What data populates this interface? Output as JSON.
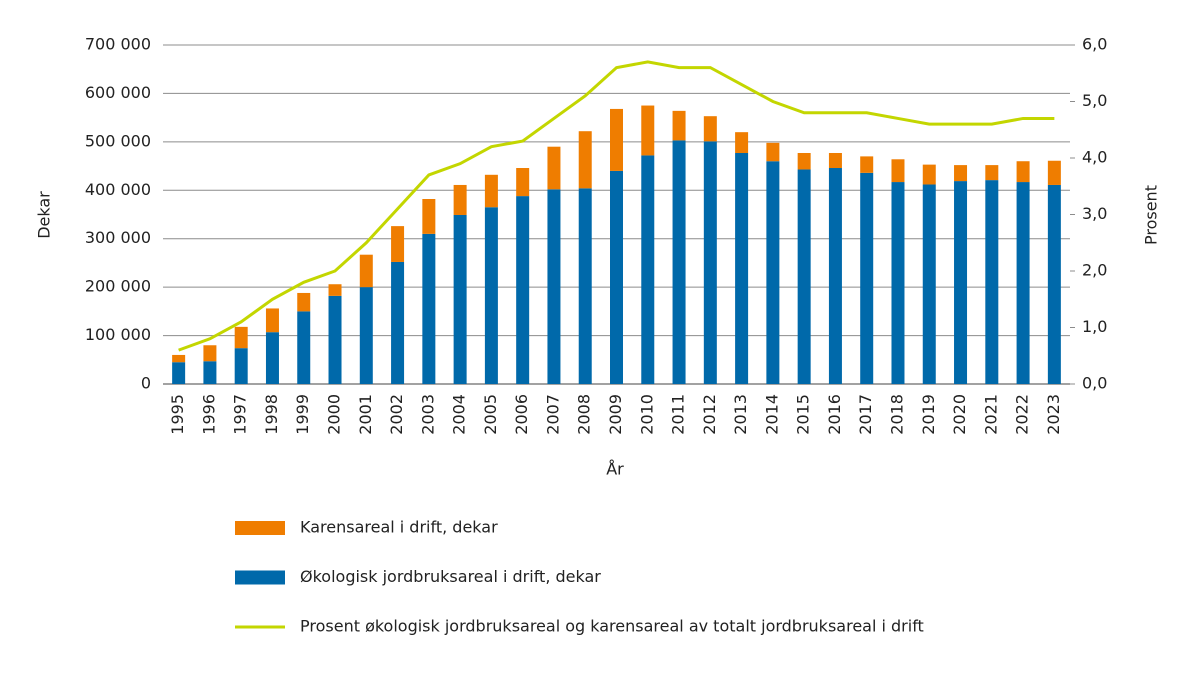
{
  "chart_data": {
    "type": "bar+line",
    "x_label": "År",
    "y_label": "Dekar",
    "y2_label": "Prosent",
    "categories": [
      "1995",
      "1996",
      "1997",
      "1998",
      "1999",
      "2000",
      "2001",
      "2002",
      "2003",
      "2004",
      "2005",
      "2006",
      "2007",
      "2008",
      "2009",
      "2010",
      "2011",
      "2012",
      "2013",
      "2014",
      "2015",
      "2016",
      "2017",
      "2018",
      "2019",
      "2020",
      "2021",
      "2022",
      "2023"
    ],
    "series": [
      {
        "name": "Karensareal i drift, dekar",
        "type": "bar",
        "color": "#ef7d00",
        "values": [
          15000,
          33000,
          44000,
          49000,
          38000,
          24000,
          67000,
          74000,
          72000,
          62000,
          67000,
          58000,
          88000,
          118000,
          128000,
          103000,
          61000,
          52000,
          43000,
          38000,
          34000,
          31000,
          34000,
          47000,
          41000,
          33000,
          31000,
          43000,
          50000
        ]
      },
      {
        "name": "Økologisk jordbruksareal i drift, dekar",
        "type": "bar",
        "color": "#0069aa",
        "values": [
          45000,
          47000,
          74000,
          107000,
          150000,
          182000,
          200000,
          252000,
          310000,
          349000,
          365000,
          388000,
          402000,
          404000,
          440000,
          472000,
          503000,
          501000,
          477000,
          460000,
          443000,
          446000,
          436000,
          417000,
          412000,
          419000,
          421000,
          417000,
          411000
        ]
      },
      {
        "name": "Prosent økologisk jordbruksareal og karensareal av totalt jordbruksareal i drift",
        "type": "line",
        "axis": "y2",
        "color": "#c3d600",
        "values": [
          0.6,
          0.8,
          1.1,
          1.5,
          1.8,
          2.0,
          2.5,
          3.1,
          3.7,
          3.9,
          4.2,
          4.3,
          4.7,
          5.1,
          5.6,
          5.7,
          5.6,
          5.6,
          5.3,
          5.0,
          4.8,
          4.8,
          4.8,
          4.7,
          4.6,
          4.6,
          4.6,
          4.7,
          4.7
        ]
      }
    ],
    "stacked": true,
    "ylim": [
      0,
      700000
    ],
    "yticks": [
      0,
      {
        "value": 100000,
        "label": "100 000"
      },
      {
        "value": 200000,
        "label": "200 000"
      },
      {
        "value": 300000,
        "label": "300 000"
      },
      {
        "value": 400000,
        "label": "400 000"
      },
      {
        "value": 500000,
        "label": "500 000"
      },
      {
        "value": 600000,
        "label": "600 000"
      },
      {
        "value": 700000,
        "label": "700 000"
      }
    ],
    "y2lim": [
      0,
      6
    ],
    "y2ticks": [
      {
        "value": 0,
        "label": "0,0"
      },
      {
        "value": 1,
        "label": "1,0"
      },
      {
        "value": 2,
        "label": "2,0"
      },
      {
        "value": 3,
        "label": "3,0"
      },
      {
        "value": 4,
        "label": "4,0"
      },
      {
        "value": 5,
        "label": "5,0"
      },
      {
        "value": 6,
        "label": "6,0"
      }
    ],
    "grid": true,
    "legend": "bottom"
  }
}
